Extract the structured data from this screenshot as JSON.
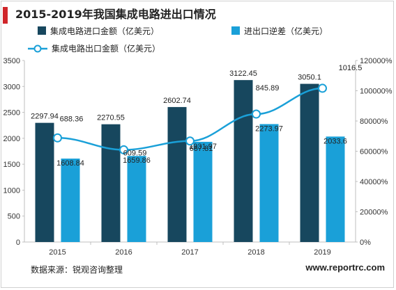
{
  "title": "2015-2019年我国集成电路进出口情况",
  "source": "数据来源：锐观咨询整理",
  "website": "www.reportrc.com",
  "colors": {
    "accent": "#d0262a",
    "import_bar": "#17475e",
    "diff_bar": "#1aa0d8",
    "export_line": "#1aa0d8"
  },
  "chart_data": {
    "type": "bar",
    "categories": [
      "2015",
      "2016",
      "2017",
      "2018",
      "2019"
    ],
    "series": [
      {
        "name": "集成电路进口金额（亿美元）",
        "type": "bar",
        "axis": "left",
        "values": [
          2297.94,
          2270.55,
          2602.74,
          3122.45,
          3050.1
        ],
        "labels": [
          "2297.94",
          "2270.55",
          "2602.74",
          "3122.45",
          "3050.1"
        ]
      },
      {
        "name": "进出口逆差（亿美元）",
        "type": "bar",
        "axis": "left",
        "values": [
          1608.84,
          1659.86,
          1931.97,
          2273.97,
          2033.6
        ],
        "labels": [
          "1608.84",
          "1659.86",
          "1931.97",
          "2273.97",
          "2033.6"
        ]
      },
      {
        "name": "集成电路出口金额（亿美元）",
        "type": "line",
        "axis": "right",
        "values": [
          688.36,
          609.59,
          667.81,
          845.89,
          1016.5
        ],
        "labels": [
          "688.36",
          "609.59",
          "667.81",
          "845.89",
          "1016.5"
        ]
      }
    ],
    "y_left": {
      "min": 0,
      "max": 3500,
      "ticks": [
        "0",
        "500",
        "1000",
        "1500",
        "2000",
        "2500",
        "3000",
        "3500"
      ]
    },
    "y_right": {
      "ticks": [
        "0%",
        "20000%",
        "40000%",
        "60000%",
        "80000%",
        "100000%",
        "120000%"
      ]
    },
    "grid": false,
    "legend_position": "top"
  }
}
